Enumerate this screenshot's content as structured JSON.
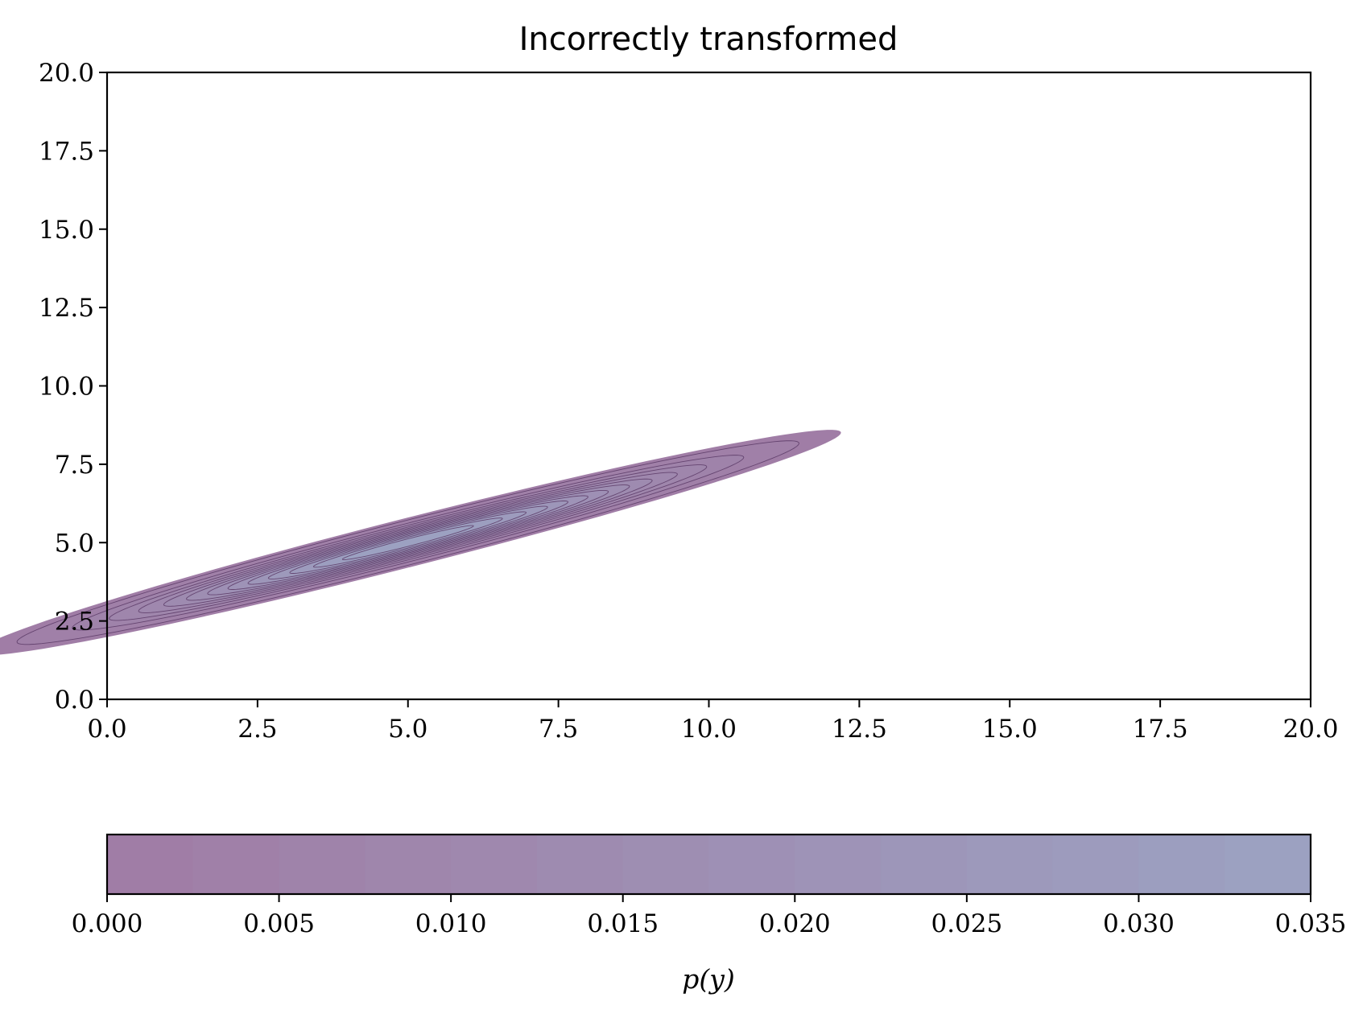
{
  "chart_data": {
    "type": "contour",
    "title": "Incorrectly transformed",
    "xlabel": "",
    "ylabel": "",
    "xlim": [
      0,
      20
    ],
    "ylim": [
      0,
      20
    ],
    "x_ticks": [
      "0.0",
      "2.5",
      "5.0",
      "7.5",
      "10.0",
      "12.5",
      "15.0",
      "17.5",
      "20.0"
    ],
    "y_ticks": [
      "0.0",
      "2.5",
      "5.0",
      "7.5",
      "10.0",
      "12.5",
      "15.0",
      "17.5",
      "20.0"
    ],
    "grid": false,
    "distribution": {
      "kind": "bivariate-gaussian-filled-contour",
      "mean": [
        5.0,
        5.0
      ],
      "cov": [
        [
          8.0,
          3.9
        ],
        [
          3.9,
          2.0
        ]
      ],
      "peak_density": 0.035
    },
    "levels": [
      0.0,
      0.0025,
      0.005,
      0.0075,
      0.01,
      0.0125,
      0.015,
      0.0175,
      0.02,
      0.0225,
      0.025,
      0.0275,
      0.03,
      0.0325,
      0.035
    ],
    "colorbar": {
      "orientation": "horizontal",
      "label": "p(y)",
      "range": [
        0,
        0.035
      ],
      "ticks": [
        "0.000",
        "0.005",
        "0.010",
        "0.015",
        "0.020",
        "0.025",
        "0.030",
        "0.035"
      ],
      "color_low": "#a07ca5",
      "color_high": "#9ca2c2"
    },
    "line_color": "#5a3a66",
    "frame_color": "#000000"
  }
}
